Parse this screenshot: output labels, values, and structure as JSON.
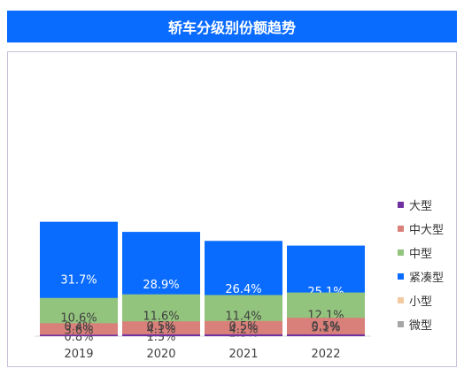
{
  "title": "轿车分级别份额趋势",
  "chart_data": {
    "type": "bar",
    "stacked": true,
    "categories": [
      "2019",
      "2020",
      "2021",
      "2022"
    ],
    "series": [
      {
        "name": "微型",
        "color": "#a6a6a6",
        "values": [
          0.8,
          1.5,
          4.0,
          5.1
        ],
        "labels": [
          "0.8%",
          "1.5%",
          "4.0%",
          "5.1%"
        ]
      },
      {
        "name": "小型",
        "color": "#f2c9a0",
        "values": [
          3.3,
          2.3,
          2.3,
          2.5
        ],
        "labels": [
          "3.3%",
          "2.3%",
          "2.3%",
          "2.5%"
        ]
      },
      {
        "name": "紧凑型",
        "color": "#0a6cff",
        "values": [
          31.7,
          28.9,
          26.4,
          25.1
        ],
        "labels": [
          "31.7%",
          "28.9%",
          "26.4%",
          "25.1%"
        ]
      },
      {
        "name": "中型",
        "color": "#93c47d",
        "values": [
          10.6,
          11.6,
          11.4,
          12.1
        ],
        "labels": [
          "10.6%",
          "11.6%",
          "11.4%",
          "12.1%"
        ]
      },
      {
        "name": "中大型",
        "color": "#d9807a",
        "values": [
          3.6,
          4.1,
          4.2,
          5.1
        ],
        "labels": [
          "3.6%",
          "4.1%",
          "4.2%",
          "5.1%"
        ]
      },
      {
        "name": "大型",
        "color": "#7030a0",
        "values": [
          0.4,
          0.5,
          0.5,
          0.5
        ],
        "labels": [
          "0.4%",
          "0.5%",
          "0.5%",
          "0.5%"
        ]
      }
    ],
    "legend_position": "right",
    "legend_order": [
      "大型",
      "中大型",
      "中型",
      "紧凑型",
      "小型",
      "微型"
    ],
    "grid": false
  }
}
